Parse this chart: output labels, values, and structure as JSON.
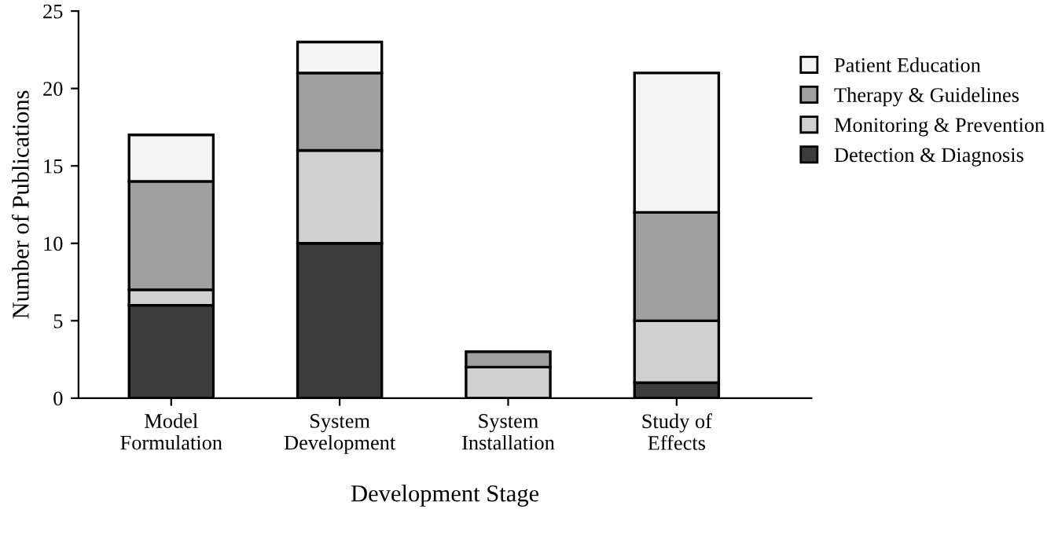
{
  "chart_data": {
    "type": "bar",
    "stacked": true,
    "xlabel": "Development Stage",
    "ylabel": "Number of Publications",
    "categories": [
      "Model\nFormulation",
      "System\nDevelopment",
      "System\nInstallation",
      "Study of\nEffects"
    ],
    "series": [
      {
        "name": "Detection & Diagnosis",
        "color": "#3c3c3c",
        "values": [
          6,
          10,
          0,
          1
        ]
      },
      {
        "name": "Monitoring & Prevention",
        "color": "#d0d0d0",
        "values": [
          1,
          6,
          2,
          4
        ]
      },
      {
        "name": "Therapy & Guidelines",
        "color": "#a0a0a0",
        "values": [
          7,
          5,
          1,
          7
        ]
      },
      {
        "name": "Patient Education",
        "color": "#f4f4f4",
        "values": [
          3,
          2,
          0,
          9
        ]
      }
    ],
    "ylim": [
      0,
      25
    ],
    "yticks": [
      0,
      5,
      10,
      15,
      20,
      25
    ],
    "grid": false,
    "legend": "right"
  }
}
